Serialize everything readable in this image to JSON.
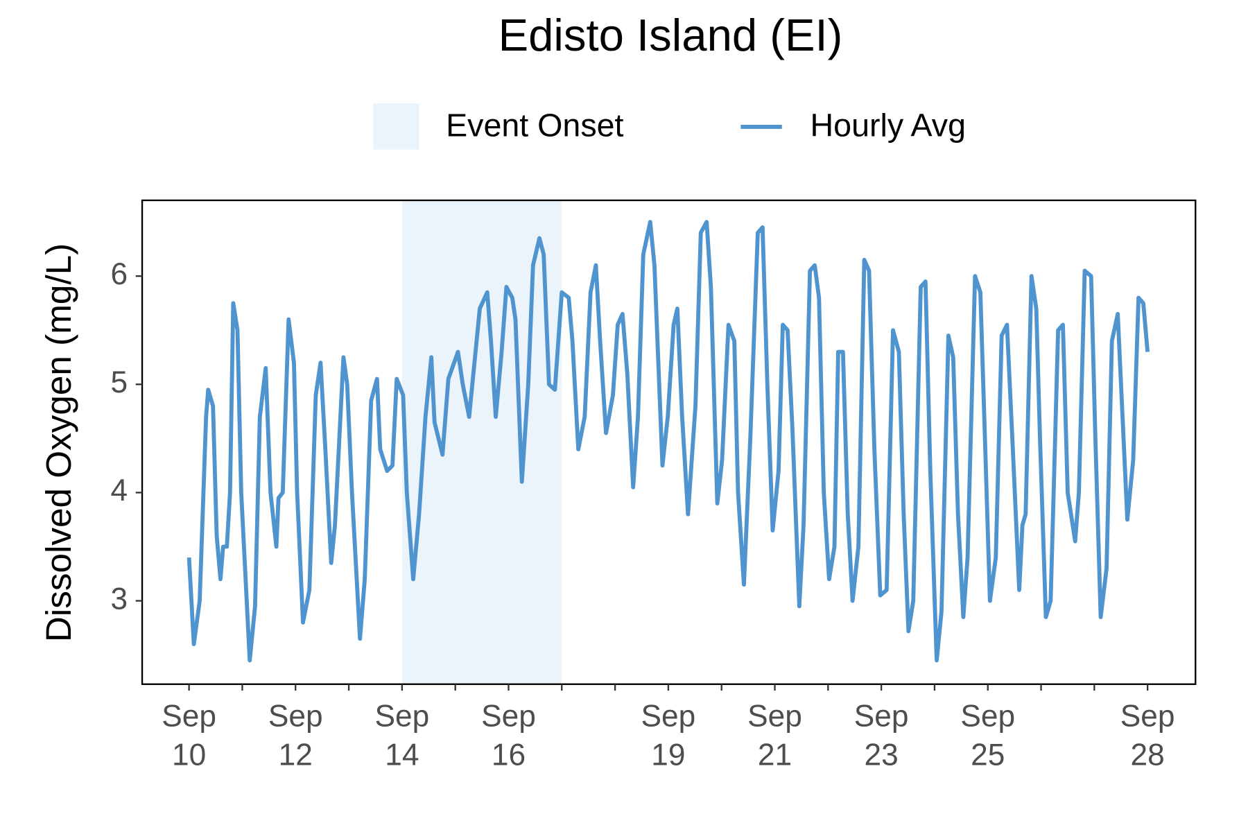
{
  "chart_data": {
    "type": "line",
    "title": "Edisto Island (EI)",
    "y_label": "Dissolved Oxygen (mg/L)",
    "xlim": [
      9.12,
      28.9
    ],
    "ylim": [
      2.23,
      6.7
    ],
    "yticks": [
      3,
      4,
      5,
      6
    ],
    "xticks": [
      {
        "value": 10,
        "label": "Sep 10"
      },
      {
        "value": 12,
        "label": "Sep 12"
      },
      {
        "value": 14,
        "label": "Sep 14"
      },
      {
        "value": 16,
        "label": "Sep 16"
      },
      {
        "value": 19,
        "label": "Sep 19"
      },
      {
        "value": 21,
        "label": "Sep 21"
      },
      {
        "value": 23,
        "label": "Sep 23"
      },
      {
        "value": 25,
        "label": "Sep 25"
      },
      {
        "value": 28,
        "label": "Sep 28"
      }
    ],
    "xminor_ticks": [
      11,
      13,
      15,
      17,
      18,
      20,
      22,
      24,
      26,
      27
    ],
    "shaded_regions": [
      {
        "name": "Event Onset",
        "start": 14,
        "end": 17,
        "color": "#ebf3fb"
      }
    ],
    "x": [
      10.0,
      10.09,
      10.2,
      10.32,
      10.36,
      10.45,
      10.52,
      10.59,
      10.64,
      10.71,
      10.77,
      10.83,
      10.91,
      10.98,
      11.14,
      11.24,
      11.33,
      11.44,
      11.53,
      11.64,
      11.68,
      11.76,
      11.87,
      11.97,
      12.03,
      12.14,
      12.26,
      12.38,
      12.47,
      12.56,
      12.67,
      12.74,
      12.9,
      12.97,
      13.06,
      13.21,
      13.3,
      13.42,
      13.53,
      13.59,
      13.72,
      13.82,
      13.9,
      14.02,
      14.09,
      14.21,
      14.32,
      14.44,
      14.55,
      14.61,
      14.76,
      14.87,
      15.05,
      15.14,
      15.26,
      15.35,
      15.46,
      15.6,
      15.67,
      15.76,
      15.87,
      15.96,
      16.07,
      16.13,
      16.25,
      16.37,
      16.46,
      16.58,
      16.66,
      16.76,
      16.87,
      17.0,
      17.13,
      17.2,
      17.31,
      17.43,
      17.54,
      17.64,
      17.72,
      17.83,
      17.96,
      18.05,
      18.14,
      18.23,
      18.34,
      18.43,
      18.53,
      18.66,
      18.74,
      18.89,
      18.99,
      19.1,
      19.17,
      19.26,
      19.37,
      19.51,
      19.61,
      19.72,
      19.8,
      19.92,
      20.01,
      20.13,
      20.24,
      20.31,
      20.42,
      20.54,
      20.68,
      20.77,
      20.86,
      20.96,
      21.07,
      21.15,
      21.24,
      21.33,
      21.46,
      21.54,
      21.66,
      21.75,
      21.83,
      21.92,
      22.02,
      22.12,
      22.19,
      22.28,
      22.37,
      22.46,
      22.57,
      22.68,
      22.77,
      22.87,
      22.98,
      23.1,
      23.22,
      23.33,
      23.42,
      23.51,
      23.6,
      23.74,
      23.83,
      23.92,
      24.04,
      24.13,
      24.26,
      24.35,
      24.44,
      24.54,
      24.62,
      24.76,
      24.86,
      24.94,
      25.04,
      25.15,
      25.26,
      25.36,
      25.47,
      25.59,
      25.65,
      25.71,
      25.82,
      25.91,
      25.98,
      26.09,
      26.18,
      26.32,
      26.41,
      26.5,
      26.64,
      26.71,
      26.82,
      26.94,
      27.02,
      27.12,
      27.23,
      27.33,
      27.44,
      27.53,
      27.62,
      27.73,
      27.83,
      27.92,
      28.0
    ],
    "series": [
      {
        "name": "Hourly Avg",
        "color": "#4f93cf",
        "values": [
          3.4,
          2.6,
          3.0,
          4.7,
          4.95,
          4.8,
          3.6,
          3.2,
          3.5,
          3.5,
          4.0,
          5.75,
          5.5,
          4.0,
          2.45,
          2.95,
          4.7,
          5.15,
          4.0,
          3.5,
          3.95,
          4.0,
          5.6,
          5.2,
          4.0,
          2.8,
          3.1,
          4.9,
          5.2,
          4.4,
          3.35,
          3.7,
          5.25,
          5.0,
          4.0,
          2.65,
          3.2,
          4.85,
          5.05,
          4.4,
          4.2,
          4.25,
          5.05,
          4.9,
          4.0,
          3.2,
          3.8,
          4.7,
          5.25,
          4.65,
          4.35,
          5.05,
          5.3,
          5.0,
          4.7,
          5.15,
          5.7,
          5.85,
          5.4,
          4.7,
          5.3,
          5.9,
          5.8,
          5.6,
          4.1,
          5.0,
          6.1,
          6.35,
          6.2,
          5.0,
          4.95,
          5.85,
          5.8,
          5.4,
          4.4,
          4.7,
          5.85,
          6.1,
          5.4,
          4.55,
          4.9,
          5.55,
          5.65,
          5.1,
          4.05,
          4.7,
          6.2,
          6.5,
          6.1,
          4.25,
          4.7,
          5.55,
          5.7,
          4.7,
          3.8,
          4.8,
          6.4,
          6.5,
          5.9,
          3.9,
          4.3,
          5.55,
          5.4,
          4.0,
          3.15,
          4.5,
          6.4,
          6.45,
          5.0,
          3.65,
          4.2,
          5.55,
          5.5,
          4.6,
          2.95,
          3.7,
          6.05,
          6.1,
          5.8,
          4.0,
          3.2,
          3.5,
          5.3,
          5.3,
          3.8,
          3.0,
          3.5,
          6.15,
          6.05,
          4.4,
          3.05,
          3.1,
          5.5,
          5.3,
          3.8,
          2.72,
          3.0,
          5.9,
          5.95,
          4.2,
          2.45,
          2.9,
          5.45,
          5.25,
          3.8,
          2.85,
          3.4,
          6.0,
          5.85,
          4.6,
          3.0,
          3.4,
          5.45,
          5.55,
          4.4,
          3.1,
          3.7,
          3.8,
          6.0,
          5.7,
          4.5,
          2.85,
          3.0,
          5.5,
          5.55,
          4.0,
          3.55,
          4.0,
          6.05,
          6.0,
          4.5,
          2.85,
          3.3,
          5.4,
          5.65,
          4.7,
          3.75,
          4.3,
          5.8,
          5.75,
          5.3
        ]
      }
    ]
  }
}
